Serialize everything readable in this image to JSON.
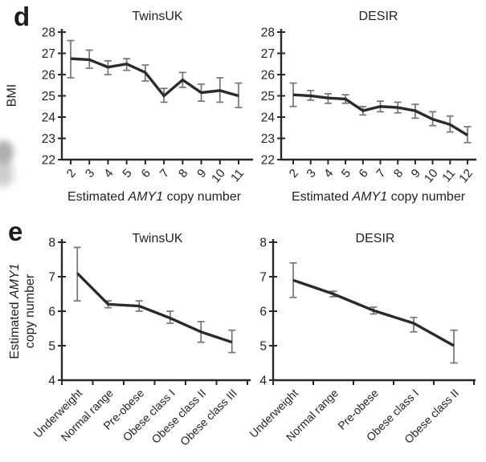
{
  "panels": {
    "d": {
      "label": "d",
      "ylabel": "BMI",
      "xlabel_pre": "Estimated ",
      "xlabel_italic": "AMY1",
      "xlabel_post": " copy number"
    },
    "e": {
      "label": "e",
      "ylabel_pre": "Estimated ",
      "ylabel_italic": "AMY1",
      "ylabel_line2": "copy number"
    }
  },
  "colors": {
    "data_line": "#2d2a2a",
    "error_bar": "#757575",
    "axis": "#2b2828",
    "text": "#231f20"
  },
  "chart_data": [
    {
      "id": "d-twinsuk",
      "panel": "d",
      "type": "line",
      "title": "TwinsUK",
      "xlabel": "Estimated AMY1 copy number",
      "ylabel": "BMI",
      "x": [
        2,
        3,
        4,
        5,
        6,
        7,
        8,
        9,
        10,
        11
      ],
      "values": [
        26.75,
        26.7,
        26.35,
        26.5,
        26.1,
        25.0,
        25.75,
        25.15,
        25.25,
        25.0
      ],
      "error_low": [
        25.85,
        26.3,
        26.0,
        26.2,
        25.7,
        24.7,
        25.4,
        24.75,
        24.7,
        24.45
      ],
      "error_high": [
        27.6,
        27.15,
        26.65,
        26.75,
        26.45,
        25.35,
        26.1,
        25.55,
        25.85,
        25.6
      ],
      "ylim": [
        22,
        28
      ],
      "yticks": [
        22,
        23,
        24,
        25,
        26,
        27,
        28
      ],
      "grid": false,
      "legend": "none"
    },
    {
      "id": "d-desir",
      "panel": "d",
      "type": "line",
      "title": "DESIR",
      "xlabel": "Estimated AMY1 copy number",
      "ylabel": "BMI",
      "x": [
        2,
        3,
        4,
        5,
        6,
        7,
        8,
        9,
        10,
        11,
        12
      ],
      "values": [
        25.05,
        25.0,
        24.9,
        24.85,
        24.3,
        24.5,
        24.45,
        24.3,
        23.9,
        23.65,
        23.15
      ],
      "error_low": [
        24.5,
        24.8,
        24.65,
        24.65,
        24.1,
        24.25,
        24.2,
        23.95,
        23.6,
        23.3,
        22.8
      ],
      "error_high": [
        25.6,
        25.25,
        25.1,
        25.05,
        24.5,
        24.75,
        24.7,
        24.6,
        24.25,
        24.05,
        23.55
      ],
      "ylim": [
        22,
        28
      ],
      "yticks": [
        22,
        23,
        24,
        25,
        26,
        27,
        28
      ],
      "grid": false,
      "legend": "none"
    },
    {
      "id": "e-twinsuk",
      "panel": "e",
      "type": "line",
      "title": "TwinsUK",
      "xlabel": "BMI category",
      "ylabel": "Estimated AMY1 copy number",
      "categories": [
        "Underweight",
        "Normal range",
        "Pre-obese",
        "Obese class I",
        "Obese class II",
        "Obese class III"
      ],
      "values": [
        7.1,
        6.2,
        6.15,
        5.8,
        5.4,
        5.1
      ],
      "error_low": [
        6.3,
        6.1,
        6.0,
        5.65,
        5.1,
        4.8
      ],
      "error_high": [
        7.85,
        6.3,
        6.3,
        6.0,
        5.7,
        5.45
      ],
      "ylim": [
        4,
        8
      ],
      "yticks": [
        4,
        5,
        6,
        7,
        8
      ],
      "grid": false,
      "legend": "none"
    },
    {
      "id": "e-desir",
      "panel": "e",
      "type": "line",
      "title": "DESIR",
      "xlabel": "BMI category",
      "ylabel": "Estimated AMY1 copy number",
      "categories": [
        "Underweight",
        "Normal range",
        "Pre-obese",
        "Obese class I",
        "Obese class II"
      ],
      "values": [
        6.9,
        6.5,
        6.02,
        5.65,
        5.0
      ],
      "error_low": [
        6.4,
        6.42,
        5.92,
        5.4,
        4.5
      ],
      "error_high": [
        7.4,
        6.58,
        6.12,
        5.82,
        5.45
      ],
      "ylim": [
        4,
        8
      ],
      "yticks": [
        4,
        5,
        6,
        7,
        8
      ],
      "grid": false,
      "legend": "none"
    }
  ]
}
